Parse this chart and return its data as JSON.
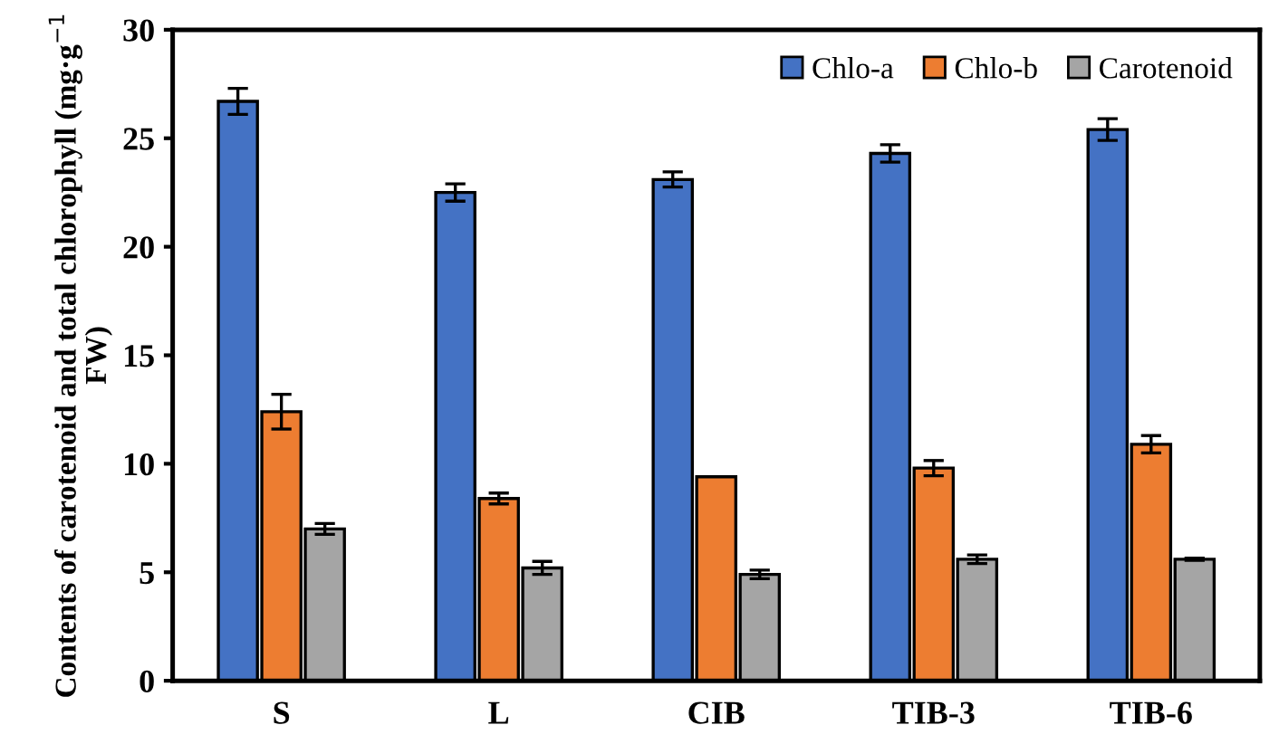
{
  "chart_data": {
    "type": "bar",
    "ylabel": "Contents of carotenoid and total chlorophyll (mg·g$^{−1}$ FW)",
    "categories": [
      "S",
      "L",
      "CIB",
      "TIB-3",
      "TIB-6"
    ],
    "series": [
      {
        "name": "Chlo-a",
        "color": "#4472c4",
        "values": [
          26.7,
          22.5,
          23.1,
          24.3,
          25.4
        ],
        "errors": [
          0.6,
          0.4,
          0.35,
          0.4,
          0.5
        ]
      },
      {
        "name": "Chlo-b",
        "color": "#ed7d31",
        "values": [
          12.4,
          8.4,
          9.4,
          9.8,
          10.9
        ],
        "errors": [
          0.8,
          0.25,
          null,
          0.35,
          0.4
        ]
      },
      {
        "name": "Carotenoid",
        "color": "#a5a5a5",
        "values": [
          7.0,
          5.2,
          4.9,
          5.6,
          5.6
        ],
        "errors": [
          0.25,
          0.3,
          0.2,
          0.2,
          0.05
        ]
      }
    ],
    "ylim": [
      0,
      30
    ],
    "yticks": [
      0,
      5,
      10,
      15,
      20,
      25,
      30
    ],
    "grid": false,
    "legend": "top right"
  }
}
